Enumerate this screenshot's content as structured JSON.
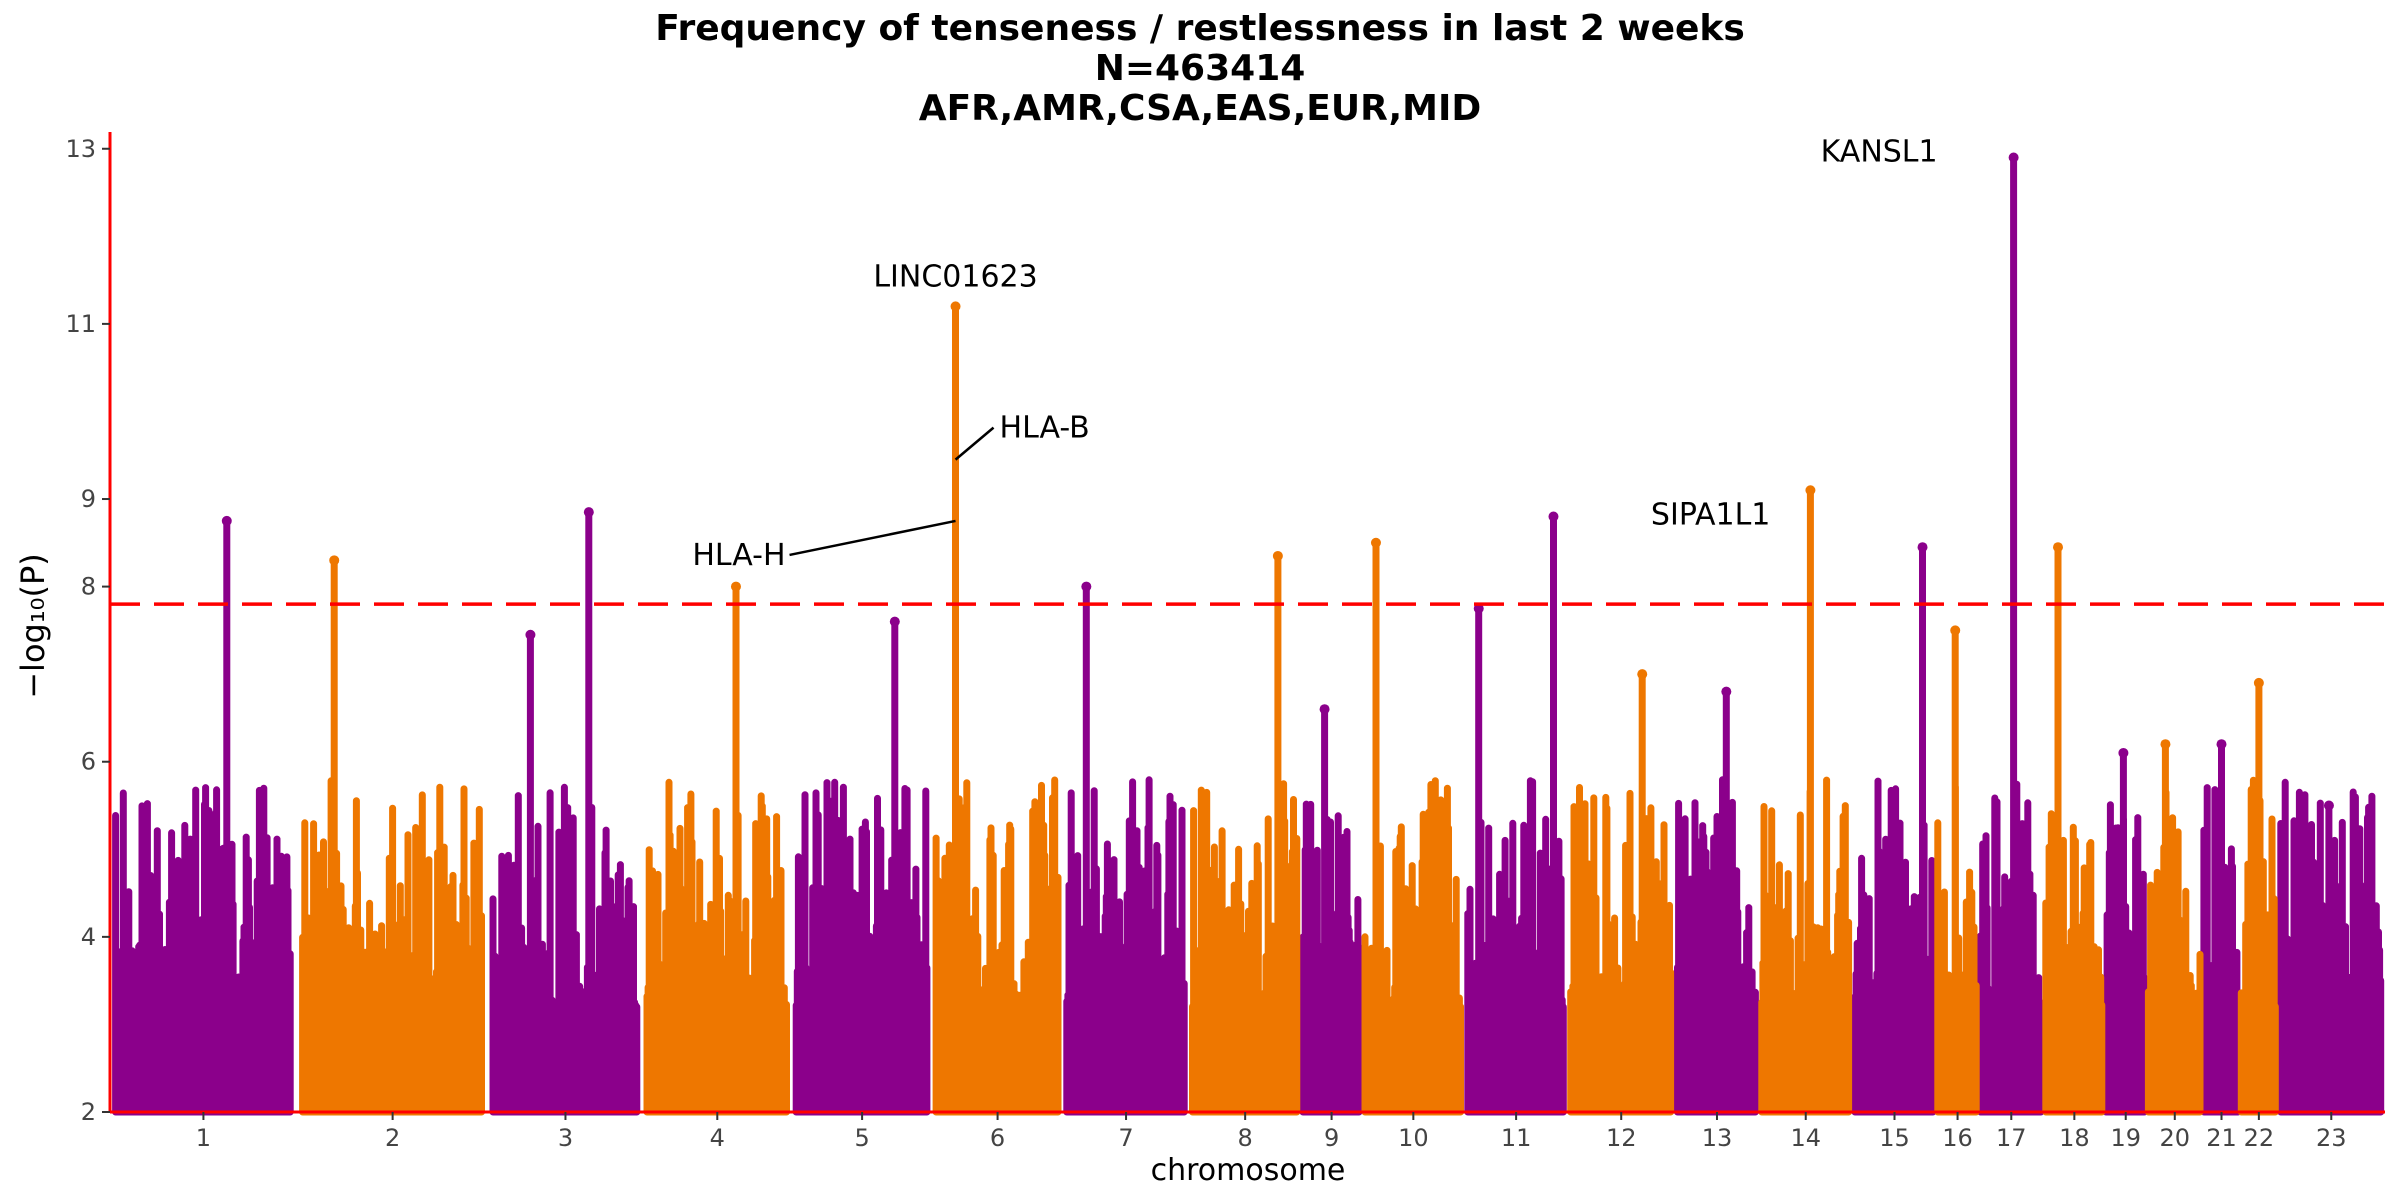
{
  "chart_data": {
    "type": "scatter",
    "title": [
      "Frequency of tenseness / restlessness in last 2 weeks",
      "N=463414",
      "AFR,AMR,CSA,EAS,EUR,MID"
    ],
    "xlabel": "chromosome",
    "ylabel": "−log₁₀(P)",
    "ylim": [
      2,
      13.1
    ],
    "y_ticks": [
      2,
      4,
      6,
      8,
      9,
      11,
      13
    ],
    "threshold": 7.8,
    "grid": false,
    "colors": {
      "odd": "#8B008B",
      "even": "#EE7700",
      "threshold": "#FF0000",
      "axis": "#FF0000"
    },
    "chromosomes": [
      {
        "label": "1",
        "start": 0.0,
        "end": 4.0,
        "peaks": [
          {
            "x": 2.5,
            "y": 8.75
          }
        ]
      },
      {
        "label": "2",
        "start": 4.0,
        "end": 8.1,
        "peaks": [
          {
            "x": 4.8,
            "y": 8.3
          }
        ]
      },
      {
        "label": "3",
        "start": 8.1,
        "end": 11.4,
        "peaks": [
          {
            "x": 10.25,
            "y": 8.85
          },
          {
            "x": 9.0,
            "y": 7.45
          }
        ]
      },
      {
        "label": "4",
        "start": 11.4,
        "end": 14.6,
        "peaks": [
          {
            "x": 13.4,
            "y": 8.0
          }
        ]
      },
      {
        "label": "5",
        "start": 14.6,
        "end": 17.6,
        "peaks": [
          {
            "x": 16.8,
            "y": 7.6
          }
        ]
      },
      {
        "label": "6",
        "start": 17.6,
        "end": 20.4,
        "peaks": [
          {
            "x": 18.1,
            "y": 11.2
          }
        ]
      },
      {
        "label": "7",
        "start": 20.4,
        "end": 23.1,
        "peaks": [
          {
            "x": 20.9,
            "y": 8.0
          }
        ]
      },
      {
        "label": "8",
        "start": 23.1,
        "end": 25.5,
        "peaks": [
          {
            "x": 25.0,
            "y": 8.35
          }
        ]
      },
      {
        "label": "9",
        "start": 25.5,
        "end": 26.8,
        "peaks": [
          {
            "x": 26.0,
            "y": 6.6
          }
        ]
      },
      {
        "label": "10",
        "start": 26.8,
        "end": 29.0,
        "peaks": [
          {
            "x": 27.1,
            "y": 8.5
          }
        ]
      },
      {
        "label": "11",
        "start": 29.0,
        "end": 31.2,
        "peaks": [
          {
            "x": 30.9,
            "y": 8.8
          },
          {
            "x": 29.3,
            "y": 7.75
          }
        ]
      },
      {
        "label": "12",
        "start": 31.2,
        "end": 33.5,
        "peaks": [
          {
            "x": 32.8,
            "y": 7.0
          }
        ]
      },
      {
        "label": "13",
        "start": 33.5,
        "end": 35.3,
        "peaks": [
          {
            "x": 34.6,
            "y": 6.8
          }
        ]
      },
      {
        "label": "14",
        "start": 35.3,
        "end": 37.3,
        "peaks": [
          {
            "x": 36.4,
            "y": 9.1
          }
        ]
      },
      {
        "label": "15",
        "start": 37.3,
        "end": 39.1,
        "peaks": [
          {
            "x": 38.8,
            "y": 8.45
          }
        ]
      },
      {
        "label": "16",
        "start": 39.1,
        "end": 40.0,
        "peaks": [
          {
            "x": 39.5,
            "y": 7.5
          }
        ]
      },
      {
        "label": "17",
        "start": 40.0,
        "end": 41.4,
        "peaks": [
          {
            "x": 40.75,
            "y": 12.9
          }
        ]
      },
      {
        "label": "18",
        "start": 41.4,
        "end": 42.7,
        "peaks": [
          {
            "x": 41.7,
            "y": 8.45
          }
        ]
      },
      {
        "label": "19",
        "start": 42.7,
        "end": 43.6,
        "peaks": [
          {
            "x": 43.1,
            "y": 6.1
          }
        ]
      },
      {
        "label": "20",
        "start": 43.6,
        "end": 44.8,
        "peaks": [
          {
            "x": 44.0,
            "y": 6.2
          }
        ]
      },
      {
        "label": "21",
        "start": 44.8,
        "end": 45.6,
        "peaks": [
          {
            "x": 45.2,
            "y": 6.2
          }
        ]
      },
      {
        "label": "22",
        "start": 45.6,
        "end": 46.4,
        "peaks": [
          {
            "x": 46.0,
            "y": 6.9
          }
        ]
      },
      {
        "label": "23",
        "start": 46.4,
        "end": 48.7,
        "peaks": [
          {
            "x": 47.5,
            "y": 5.5
          }
        ]
      }
    ],
    "annotations": [
      {
        "label": "KANSL1",
        "x": 40.75,
        "y": 12.9
      },
      {
        "label": "LINC01623",
        "x": 18.1,
        "y": 11.2
      },
      {
        "label": "HLA-B",
        "x": 18.1,
        "y": 9.45
      },
      {
        "label": "HLA-H",
        "x": 18.1,
        "y": 8.75
      },
      {
        "label": "SIPA1L1",
        "x": 36.4,
        "y": 9.1
      }
    ]
  }
}
